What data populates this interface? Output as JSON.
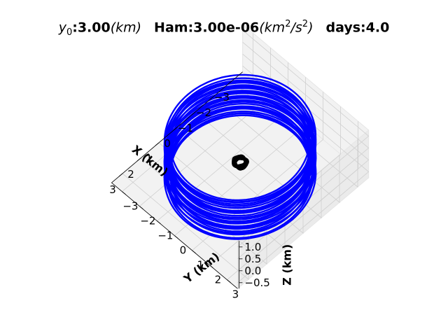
{
  "chart_data": {
    "type": "line3d",
    "title": {
      "y0_symbol": "y",
      "y0_subscript": "0",
      "y0_value": ":3.00",
      "y0_unit": "(km)",
      "ham_label": "Ham:3.00e-06",
      "ham_unit_open": "(km",
      "ham_unit_exp1": "2",
      "ham_unit_mid": "/s",
      "ham_unit_exp2": "2",
      "ham_unit_close": ")",
      "days_label": "days:4.0"
    },
    "xlabel": "X (km)",
    "ylabel": "Y (km)",
    "zlabel": "Z (km)",
    "xlim": [
      -3.6,
      3.6
    ],
    "ylim": [
      -3.6,
      3.6
    ],
    "zlim": [
      -0.75,
      1.25
    ],
    "xticks": [
      "−3",
      "−2",
      "−1",
      "0",
      "1",
      "2",
      "3"
    ],
    "yticks": [
      "−3",
      "−2",
      "−1",
      "0",
      "1",
      "2",
      "3"
    ],
    "zticks": [
      "−0.5",
      "0.0",
      "0.5",
      "1.0"
    ],
    "grid": true,
    "series": [
      {
        "kind": "orbit",
        "color": "#0000ff",
        "radius": 3.0,
        "z_min": -0.6,
        "z_max": 1.0,
        "loops": 28
      },
      {
        "kind": "body",
        "color": "#000000",
        "radius": 0.3
      }
    ]
  }
}
